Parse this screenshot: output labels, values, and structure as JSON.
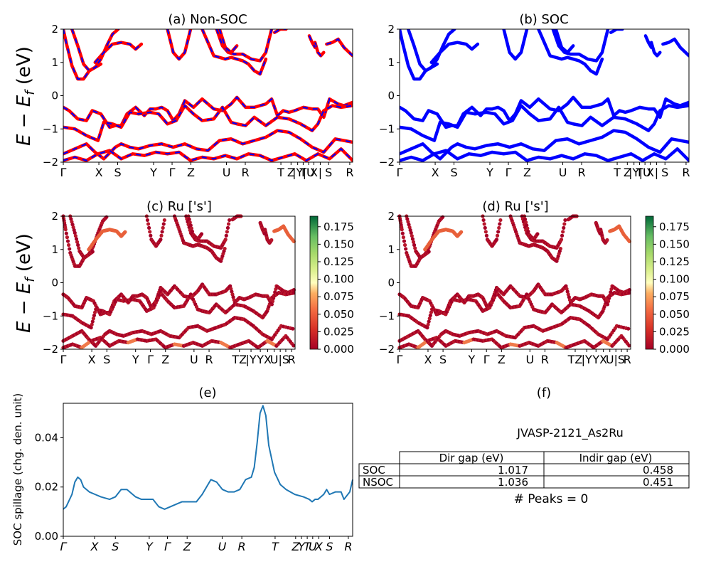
{
  "figure": {
    "panel_labels": [
      "(a) Non-SOC",
      "(b) SOC",
      "(c)  Ru ['s']",
      "(d) Ru ['s']",
      "(e)",
      "(f)"
    ],
    "ylabel_band": "E − E_f (eV)",
    "ylabel_spillage": "SOC spillage (chg. den. unit)",
    "kpath_labels": [
      "Γ",
      "X",
      "S",
      "Y",
      "Γ",
      "Z",
      "U",
      "R",
      "T",
      "Z|Y",
      "T|U",
      "X|S",
      "R"
    ]
  },
  "chart_data": [
    {
      "panel": "a",
      "type": "line",
      "title": "(a) Non-SOC",
      "xlabel": "",
      "ylabel": "E − E_f (eV)",
      "ylim": [
        -2,
        2
      ],
      "yticks": [
        -2,
        -1,
        0,
        1,
        2
      ],
      "xticks": [
        "Γ",
        "X",
        "S",
        "Y",
        "Γ",
        "Z",
        "U",
        "R",
        "T",
        "Z",
        "|Y",
        "T",
        "|U",
        "X",
        "|",
        "S",
        "R"
      ],
      "colors": {
        "up": "#ff0000",
        "down": "#0000ff"
      },
      "series": [
        {
          "values_x": [
            0,
            0.02,
            0.05,
            0.08,
            0.1,
            0.13,
            0.16,
            0.18,
            0.2,
            0.22,
            0.25,
            0.28,
            0.3,
            0.32,
            0.34,
            0.36,
            0.38,
            0.4,
            0.42,
            0.45,
            0.48,
            0.52,
            0.55,
            0.58,
            0.6,
            0.63,
            0.66,
            0.7,
            0.72,
            0.74,
            0.76,
            0.78,
            0.8,
            0.83,
            0.86,
            0.88,
            0.9,
            0.92,
            0.95,
            0.97,
            1.0
          ],
          "values_y": [
            -0.35,
            -0.45,
            -0.7,
            -0.75,
            -0.45,
            -0.55,
            -0.95,
            -0.9,
            -0.9,
            -0.55,
            -0.35,
            -0.6,
            -0.4,
            -0.4,
            -0.35,
            -0.45,
            -0.75,
            -0.55,
            -0.15,
            -0.35,
            -0.1,
            -0.4,
            -0.45,
            -0.25,
            -0.05,
            -0.35,
            -0.35,
            -0.25,
            -0.1,
            -0.6,
            -0.45,
            -0.5,
            -0.45,
            -0.35,
            -0.4,
            -0.4,
            -0.65,
            -0.1,
            -0.25,
            -0.3,
            -0.2
          ]
        },
        {
          "values_x": [
            0,
            0.04,
            0.08,
            0.12,
            0.14,
            0.17,
            0.2,
            0.23,
            0.26,
            0.3,
            0.33,
            0.36,
            0.39,
            0.42,
            0.45,
            0.48,
            0.52,
            0.55,
            0.58,
            0.6,
            0.63,
            0.66,
            0.7,
            0.74,
            0.78,
            0.82,
            0.86,
            0.88,
            0.9,
            0.93,
            0.96,
            1.0
          ],
          "values_y": [
            -0.95,
            -1.0,
            -1.2,
            -1.35,
            -0.8,
            -0.85,
            -0.95,
            -0.5,
            -0.55,
            -0.5,
            -0.55,
            -0.85,
            -0.75,
            -0.3,
            -0.55,
            -0.75,
            -0.7,
            -0.35,
            -0.8,
            -0.85,
            -0.9,
            -0.65,
            -0.9,
            -0.65,
            -0.7,
            -0.85,
            -1.05,
            -0.85,
            -0.45,
            -0.3,
            -0.35,
            -0.3
          ]
        },
        {
          "values_x": [
            0,
            0.04,
            0.08,
            0.11,
            0.14,
            0.18,
            0.2,
            0.23,
            0.26,
            0.3,
            0.34,
            0.38,
            0.42,
            0.46,
            0.5,
            0.54,
            0.58,
            0.62,
            0.66,
            0.7,
            0.74,
            0.78,
            0.82,
            0.86,
            0.9,
            0.94,
            1.0
          ],
          "values_y": [
            -1.75,
            -1.6,
            -1.45,
            -1.7,
            -1.9,
            -1.55,
            -1.45,
            -1.55,
            -1.6,
            -1.5,
            -1.45,
            -1.55,
            -1.45,
            -1.6,
            -1.65,
            -1.35,
            -1.3,
            -1.45,
            -1.35,
            -1.25,
            -1.05,
            -1.1,
            -1.3,
            -1.55,
            -1.7,
            -1.3,
            -1.4
          ]
        },
        {
          "values_x": [
            0,
            0.04,
            0.08,
            0.12,
            0.16,
            0.2,
            0.24,
            0.28,
            0.32,
            0.36,
            0.4,
            0.44,
            0.48,
            0.52,
            0.56,
            0.6,
            0.64,
            0.68,
            0.72,
            0.76,
            0.8,
            0.84,
            0.88,
            0.92,
            0.96,
            1.0
          ],
          "values_y": [
            -1.95,
            -1.85,
            -1.95,
            -1.75,
            -1.65,
            -1.9,
            -1.75,
            -1.8,
            -1.7,
            -1.75,
            -1.7,
            -1.95,
            -1.85,
            -1.9,
            -1.8,
            -1.9,
            -1.75,
            -1.8,
            -1.95,
            -1.85,
            -1.75,
            -1.95,
            -1.75,
            -1.9,
            -1.6,
            -1.95
          ]
        },
        {
          "values_x": [
            0,
            0.01,
            0.03,
            0.05,
            0.07,
            0.09,
            0.11,
            0.13,
            0.15,
            0.17,
            0.19
          ],
          "values_y": [
            2.0,
            1.6,
            0.9,
            0.5,
            0.5,
            0.75,
            0.85,
            1.1,
            1.5,
            1.85,
            2.0
          ]
        },
        {
          "values_x": [
            0.03,
            0.05,
            0.07,
            0.09,
            0.11,
            0.13
          ],
          "values_y": [
            2.0,
            1.5,
            0.95,
            0.75,
            0.85,
            0.95
          ]
        },
        {
          "values_x": [
            0.11,
            0.14,
            0.17,
            0.2,
            0.23,
            0.25,
            0.27
          ],
          "values_y": [
            1.0,
            1.3,
            1.55,
            1.6,
            1.55,
            1.4,
            1.55
          ]
        },
        {
          "values_x": [
            0.36,
            0.38,
            0.4,
            0.42,
            0.44
          ],
          "values_y": [
            2.0,
            1.3,
            1.1,
            1.3,
            2.0
          ]
        },
        {
          "values_x": [
            0.53,
            0.55,
            0.57,
            0.59,
            0.62,
            0.65,
            0.68,
            0.7,
            0.72
          ],
          "values_y": [
            2.0,
            1.5,
            1.3,
            1.25,
            1.25,
            1.1,
            1.05,
            1.3,
            2.0
          ]
        },
        {
          "values_x": [
            0.54,
            0.56,
            0.58,
            0.6
          ],
          "values_y": [
            2.0,
            1.45,
            1.3,
            1.5
          ]
        },
        {
          "values_x": [
            0.48,
            0.5,
            0.52,
            0.54,
            0.56,
            0.58,
            0.6,
            0.62,
            0.64,
            0.66,
            0.68,
            0.7
          ],
          "values_y": [
            2.0,
            1.6,
            1.2,
            1.15,
            1.1,
            1.15,
            1.1,
            1.05,
            0.95,
            0.75,
            0.65,
            1.1
          ]
        },
        {
          "values_x": [
            0.73,
            0.75,
            0.77
          ],
          "values_y": [
            1.9,
            2.0,
            2.0
          ]
        },
        {
          "values_x": [
            0.87,
            0.88,
            0.89,
            0.9
          ],
          "values_y": [
            1.6,
            1.3,
            1.2,
            1.3
          ]
        },
        {
          "values_x": [
            0.91,
            0.93,
            0.95,
            0.97,
            1.0
          ],
          "values_y": [
            1.55,
            1.6,
            1.7,
            1.45,
            1.2
          ]
        },
        {
          "values_x": [
            0.85,
            0.86,
            0.87
          ],
          "values_y": [
            1.8,
            1.6,
            1.45
          ]
        }
      ]
    },
    {
      "panel": "b",
      "type": "line",
      "title": "(b) SOC",
      "ylim": [
        -2,
        2
      ],
      "yticks": [
        -2,
        -1,
        0,
        1,
        2
      ],
      "xticks": [
        "Γ",
        "X",
        "S",
        "Y",
        "Γ",
        "Z",
        "U",
        "R",
        "T",
        "Z",
        "|Y",
        "T",
        "|U",
        "X",
        "|",
        "S",
        "R"
      ],
      "colors": {
        "line": "#0000ff"
      }
    },
    {
      "panel": "c",
      "type": "scatter",
      "title": "(c)  Ru ['s']",
      "ylabel": "E − E_f (eV)",
      "ylim": [
        -2,
        2
      ],
      "yticks": [
        -2,
        -1,
        0,
        1,
        2
      ],
      "xticks": [
        "Γ",
        "X",
        "S",
        "Y",
        "Γ",
        "Z",
        "U",
        "R",
        "TZ",
        "|Y",
        "Y",
        "X",
        "U",
        "|",
        "S",
        "R"
      ],
      "colorbar": {
        "min": 0.0,
        "max": 0.19,
        "ticks": [
          "0.000",
          "0.025",
          "0.050",
          "0.075",
          "0.100",
          "0.125",
          "0.150",
          "0.175"
        ],
        "colormap": "RdYlGn"
      }
    },
    {
      "panel": "d",
      "type": "scatter",
      "title": "(d) Ru ['s']",
      "ylim": [
        -2,
        2
      ],
      "yticks": [
        -2,
        -1,
        0,
        1,
        2
      ],
      "xticks": [
        "Γ",
        "X",
        "S",
        "Y",
        "Γ",
        "Z",
        "U",
        "R",
        "TZ",
        "|Y",
        "Y",
        "X",
        "U",
        "|",
        "S",
        "R"
      ],
      "colorbar": {
        "min": 0.0,
        "max": 0.19,
        "ticks": [
          "0.000",
          "0.025",
          "0.050",
          "0.075",
          "0.100",
          "0.125",
          "0.150",
          "0.175"
        ],
        "colormap": "RdYlGn"
      }
    },
    {
      "panel": "e",
      "type": "line",
      "title": "(e)",
      "ylabel": "SOC spillage (chg. den. unit)",
      "ylim": [
        0.0,
        0.054
      ],
      "yticks": [
        0.0,
        0.02,
        0.04
      ],
      "ytick_labels": [
        "0.00",
        "0.02",
        "0.04"
      ],
      "xticks": [
        "Γ",
        "X",
        "S",
        "Y",
        "Γ",
        "Z",
        "U",
        "R",
        "T",
        "Z",
        "Y",
        "T",
        "U",
        "X",
        "S",
        "R"
      ],
      "color": "#1f77b4",
      "x": [
        0.0,
        0.01,
        0.03,
        0.04,
        0.05,
        0.06,
        0.07,
        0.09,
        0.11,
        0.13,
        0.16,
        0.18,
        0.2,
        0.22,
        0.25,
        0.27,
        0.29,
        0.31,
        0.33,
        0.35,
        0.37,
        0.39,
        0.41,
        0.43,
        0.46,
        0.48,
        0.51,
        0.53,
        0.55,
        0.57,
        0.59,
        0.61,
        0.63,
        0.65,
        0.66,
        0.67,
        0.68,
        0.69,
        0.7,
        0.71,
        0.73,
        0.75,
        0.77,
        0.8,
        0.83,
        0.85,
        0.86,
        0.87,
        0.88,
        0.89,
        0.9,
        0.91,
        0.92,
        0.94,
        0.95,
        0.96,
        0.97,
        0.99,
        1.0
      ],
      "y": [
        0.011,
        0.012,
        0.017,
        0.022,
        0.024,
        0.023,
        0.02,
        0.018,
        0.017,
        0.016,
        0.015,
        0.016,
        0.019,
        0.019,
        0.016,
        0.015,
        0.015,
        0.015,
        0.012,
        0.011,
        0.012,
        0.013,
        0.014,
        0.014,
        0.014,
        0.017,
        0.023,
        0.022,
        0.019,
        0.018,
        0.018,
        0.019,
        0.023,
        0.024,
        0.028,
        0.038,
        0.05,
        0.053,
        0.049,
        0.037,
        0.026,
        0.021,
        0.019,
        0.017,
        0.016,
        0.015,
        0.014,
        0.015,
        0.015,
        0.016,
        0.017,
        0.019,
        0.017,
        0.018,
        0.018,
        0.018,
        0.015,
        0.018,
        0.023
      ]
    },
    {
      "panel": "f",
      "type": "table",
      "title": "(f)",
      "subtitle": "JVASP-2121_As2Ru",
      "columns": [
        "",
        "Dir gap (eV)",
        "Indir gap (eV)"
      ],
      "rows": [
        [
          "SOC",
          "1.017",
          "0.458"
        ],
        [
          "NSOC",
          "1.036",
          "0.451"
        ]
      ],
      "footer": "# Peaks = 0"
    }
  ],
  "table_f": {
    "header_dir": "Dir gap (eV)",
    "header_indir": "Indir gap (eV)",
    "soc_label": "SOC",
    "soc_dir": "1.017",
    "soc_indir": "0.458",
    "nsoc_label": "NSOC",
    "nsoc_dir": "1.036",
    "nsoc_indir": "0.451",
    "subtitle": "JVASP-2121_As2Ru",
    "footer": "# Peaks = 0"
  }
}
